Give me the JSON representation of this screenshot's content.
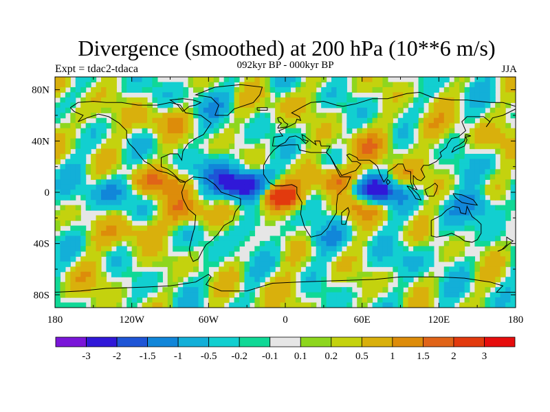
{
  "title": "Divergence (smoothed) at 200 hPa (10**6 m/s)",
  "subtitle": "092kyr BP - 000kyr BP",
  "left_label": "Expt = tdac2-tdaca",
  "right_label": "JJA",
  "colors": {
    "background": "#e6e6e6",
    "coast": "#000000",
    "palette": [
      "#7a16d8",
      "#3018d8",
      "#1e55d6",
      "#1186d9",
      "#13afd8",
      "#12cfd0",
      "#10d896",
      "#e6e6e6",
      "#8ed61e",
      "#c4d20e",
      "#d9b00c",
      "#dd8c0a",
      "#e06418",
      "#e23a0e",
      "#e60d0d"
    ]
  },
  "chart_data": {
    "type": "filled_contour_map",
    "title": "Divergence (smoothed) at 200 hPa (10**6 m/s)",
    "subtitle": "092kyr BP - 000kyr BP",
    "experiment": "Expt = tdac2-tdaca",
    "season": "JJA",
    "x_axis": {
      "range": [
        -180,
        180
      ],
      "tick_values": [
        -180,
        -120,
        -60,
        0,
        60,
        120,
        180
      ],
      "tick_labels": [
        "180",
        "120W",
        "60W",
        "0",
        "60E",
        "120E",
        "180"
      ]
    },
    "y_axis": {
      "range": [
        -90,
        90
      ],
      "tick_values": [
        80,
        40,
        0,
        -40,
        -80
      ],
      "tick_labels": [
        "80N",
        "40N",
        "0",
        "40S",
        "80S"
      ]
    },
    "levels": [
      -3,
      -2,
      -1.5,
      -1,
      -0.5,
      -0.2,
      -0.1,
      0.1,
      0.2,
      0.5,
      1,
      1.5,
      2,
      3
    ],
    "colorbar_labels": [
      "-3",
      "-2",
      "-1.5",
      "-1",
      "-0.5",
      "-0.2",
      "-0.1",
      "0.1",
      "0.2",
      "0.5",
      "1",
      "1.5",
      "2",
      "3"
    ],
    "features": [
      {
        "lon": -32,
        "lat": 5,
        "value": -3.2
      },
      {
        "lon": -5,
        "lat": -3,
        "value": 3.2
      },
      {
        "lon": 70,
        "lat": 1,
        "value": -3.0
      },
      {
        "lon": 55,
        "lat": -10,
        "value": 1.4
      },
      {
        "lon": 40,
        "lat": 10,
        "value": 1.8
      },
      {
        "lon": 23,
        "lat": -8,
        "value": -0.6
      },
      {
        "lon": -100,
        "lat": 8,
        "value": 1.5
      },
      {
        "lon": -135,
        "lat": 0,
        "value": -1.0
      },
      {
        "lon": -75,
        "lat": -15,
        "value": 1.3
      },
      {
        "lon": -55,
        "lat": 18,
        "value": -0.8
      },
      {
        "lon": 10,
        "lat": 5,
        "value": -0.5
      },
      {
        "lon": 95,
        "lat": 12,
        "value": 1.1
      },
      {
        "lon": 150,
        "lat": -10,
        "value": -1.2
      },
      {
        "lon": 130,
        "lat": 15,
        "value": -0.5
      },
      {
        "lon": -120,
        "lat": -30,
        "value": 1.0
      },
      {
        "lon": -30,
        "lat": -30,
        "value": -0.5
      },
      {
        "lon": 30,
        "lat": -35,
        "value": -0.6
      },
      {
        "lon": 60,
        "lat": 35,
        "value": 1.0
      },
      {
        "lon": 110,
        "lat": 50,
        "value": 0.7
      },
      {
        "lon": -100,
        "lat": 55,
        "value": 0.8
      },
      {
        "lon": -60,
        "lat": 70,
        "value": -0.5
      },
      {
        "lon": 0,
        "lat": 70,
        "value": 0.5
      },
      {
        "lon": 100,
        "lat": -50,
        "value": -0.4
      },
      {
        "lon": -150,
        "lat": -65,
        "value": 0.6
      },
      {
        "lon": 0,
        "lat": -75,
        "value": 0.5
      },
      {
        "lon": 160,
        "lat": 40,
        "value": 0.5
      },
      {
        "lon": -160,
        "lat": 60,
        "value": 0.5
      }
    ]
  }
}
